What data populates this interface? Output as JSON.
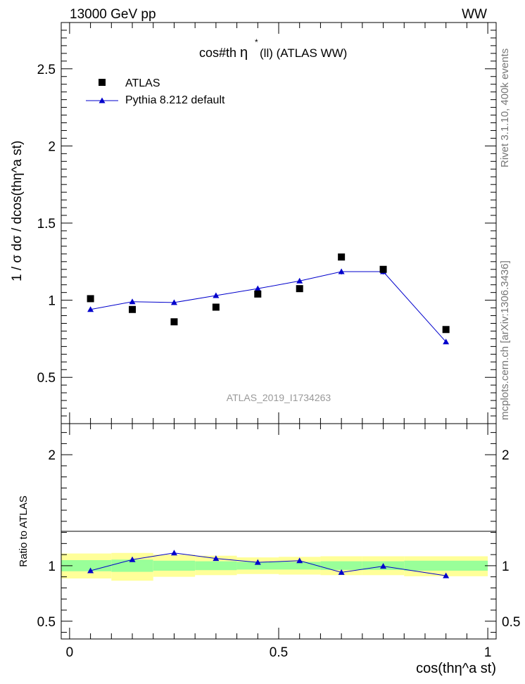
{
  "header": {
    "left": "13000 GeV pp",
    "right": "WW",
    "side_top": "Rivet 3.1.10,  400k events",
    "side_bottom": "mcplots.cern.ch [arXiv:1306.3436]"
  },
  "colors": {
    "data": "#000000",
    "mc": "#0000cc",
    "band_inner": "#99ff99",
    "band_outer": "#ffff99",
    "watermark": "#999999"
  },
  "chart_data": [
    {
      "type": "scatter",
      "title": "cos#thη*(ll) (ATLAS WW)",
      "title_main": "cos#th",
      "title_eta": "η",
      "title_star": "*",
      "title_rest": "(ll) (ATLAS WW)",
      "ylabel": "1 / σ  dσ / dcos(thη^a st)",
      "watermark": "ATLAS_2019_I1734263",
      "xlim": [
        -0.02,
        1.02
      ],
      "ylim": [
        0.2,
        2.8
      ],
      "yticks": [
        0.5,
        1,
        1.5,
        2,
        2.5
      ],
      "ytick_labels": [
        "0.5",
        "1",
        "1.5",
        "2",
        "2.5"
      ],
      "legend_position": "top-left",
      "series": [
        {
          "name": "ATLAS",
          "marker": "square",
          "x": [
            0.05,
            0.15,
            0.25,
            0.35,
            0.45,
            0.55,
            0.65,
            0.75,
            0.9
          ],
          "y": [
            1.01,
            0.94,
            0.86,
            0.955,
            1.04,
            1.075,
            1.28,
            1.2,
            0.81
          ]
        },
        {
          "name": "Pythia 8.212 default",
          "marker": "triangle",
          "x": [
            0.05,
            0.15,
            0.25,
            0.35,
            0.45,
            0.55,
            0.65,
            0.75,
            0.9
          ],
          "y": [
            0.94,
            0.99,
            0.985,
            1.03,
            1.075,
            1.125,
            1.185,
            1.185,
            0.73
          ],
          "yerr": [
            0.015,
            0.015,
            0.015,
            0.015,
            0.015,
            0.015,
            0.018,
            0.018,
            0.01
          ]
        }
      ]
    },
    {
      "type": "line",
      "ylabel": "Ratio to ATLAS",
      "xlabel": "cos(thη^a st)",
      "xlim": [
        -0.02,
        1.02
      ],
      "ylim": [
        0.34,
        2.28
      ],
      "xticks": [
        0,
        0.5,
        1
      ],
      "xtick_labels": [
        "0",
        "0.5",
        "1"
      ],
      "yticks": [
        0.5,
        1,
        2
      ],
      "ytick_labels": [
        "0.5",
        "1",
        "2"
      ],
      "bands": {
        "edges": [
          0,
          0.1,
          0.2,
          0.3,
          0.4,
          0.5,
          0.6,
          0.7,
          0.8,
          1.0
        ],
        "inner_low": [
          0.95,
          0.945,
          0.955,
          0.96,
          0.965,
          0.965,
          0.962,
          0.962,
          0.955
        ],
        "inner_high": [
          1.05,
          1.055,
          1.045,
          1.04,
          1.035,
          1.035,
          1.04,
          1.04,
          1.045
        ],
        "outer_low": [
          0.885,
          0.865,
          0.9,
          0.915,
          0.925,
          0.92,
          0.915,
          0.915,
          0.905
        ],
        "outer_high": [
          1.11,
          1.115,
          1.1,
          1.09,
          1.075,
          1.08,
          1.085,
          1.085,
          1.085
        ]
      },
      "series": [
        {
          "name": "Pythia 8.212 default",
          "x": [
            0.05,
            0.15,
            0.25,
            0.35,
            0.45,
            0.55,
            0.65,
            0.75,
            0.9
          ],
          "y": [
            0.955,
            1.055,
            1.115,
            1.065,
            1.03,
            1.045,
            0.94,
            0.995,
            0.91
          ]
        }
      ]
    }
  ]
}
